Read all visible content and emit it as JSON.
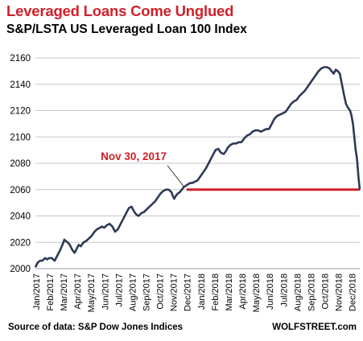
{
  "header": {
    "title": "Leveraged Loans Come Unglued",
    "subtitle": "S&P/LSTA US Leveraged Loan 100 Index"
  },
  "footer": {
    "source": "Source of data: S&P Dow Jones Indices",
    "credit": "WOLFSTREET.com"
  },
  "colors": {
    "series": "#2d3a55",
    "accent": "#d0202a",
    "grid": "#c8c8c8"
  },
  "chart_data": {
    "type": "line",
    "title": "S&P/LSTA US Leveraged Loan 100 Index",
    "xlabel": "",
    "ylabel": "",
    "ylim": [
      2000,
      2160
    ],
    "yticks": [
      2000,
      2020,
      2040,
      2060,
      2080,
      2100,
      2120,
      2140,
      2160
    ],
    "grid": "horizontal",
    "xticks": [
      "Jan/2017",
      "Feb/2017",
      "Mar/2017",
      "Apr/2017",
      "May/2017",
      "Jun/2017",
      "Jul/2017",
      "Aug/2017",
      "Sep/2017",
      "Oct/2017",
      "Nov/2017",
      "Dec/2017",
      "Jan/2018",
      "Feb/2018",
      "Mar/2018",
      "Apr/2018",
      "May/2018",
      "Jun/2018",
      "Jul/2018",
      "Aug/2018",
      "Sep/2018",
      "Oct/2018",
      "Nov/2018",
      "Dec/2018"
    ],
    "series": [
      {
        "x": [
          0.0,
          0.08,
          0.2,
          0.35,
          0.5,
          0.7,
          0.85,
          1.0,
          1.2,
          1.4,
          1.6,
          1.8,
          2.0,
          2.1,
          2.2,
          2.35,
          2.5,
          2.7,
          2.85,
          3.0,
          3.15,
          3.3,
          3.5,
          3.7,
          3.9,
          4.1,
          4.3,
          4.5,
          4.7,
          4.85,
          5.0,
          5.2,
          5.4,
          5.6,
          5.8,
          6.0,
          6.1,
          6.2,
          6.4,
          6.6,
          6.8,
          7.0,
          7.1,
          7.2,
          7.35,
          7.5,
          7.7,
          7.9,
          8.1,
          8.3,
          8.5,
          8.7,
          8.9,
          9.1,
          9.3,
          9.5,
          9.7,
          9.9,
          10.0,
          10.1,
          10.2,
          10.35,
          10.5,
          10.65,
          10.8,
          10.95,
          11.1,
          11.25,
          11.4,
          11.6,
          11.8,
          12.0,
          12.2,
          12.4,
          12.6,
          12.8,
          12.9,
          13.0,
          13.1,
          13.3,
          13.5,
          13.7,
          13.85,
          14.0,
          14.2,
          14.4,
          14.6,
          14.8,
          15.0,
          15.2,
          15.4,
          15.6,
          15.8,
          16.0,
          16.2,
          16.4,
          16.6,
          16.8,
          17.0,
          17.2,
          17.4,
          17.6,
          17.8,
          18.0,
          18.2,
          18.4,
          18.6,
          18.8,
          19.0,
          19.2,
          19.4,
          19.6,
          19.8,
          20.0,
          20.2,
          20.4,
          20.6,
          20.8,
          21.0,
          21.2,
          21.4,
          21.55,
          21.7,
          21.85,
          22.0,
          22.15,
          22.3,
          22.45,
          22.6,
          22.75,
          22.9,
          23.0,
          23.1,
          23.2,
          23.3,
          23.4,
          23.5,
          23.6
        ],
        "values": [
          2001,
          2003,
          2005,
          2006,
          2006,
          2008,
          2007,
          2008,
          2008,
          2006,
          2010,
          2014,
          2019,
          2022,
          2021,
          2020,
          2018,
          2014,
          2012,
          2015,
          2018,
          2017,
          2020,
          2021,
          2023,
          2025,
          2028,
          2030,
          2031,
          2032,
          2031,
          2033,
          2034,
          2032,
          2028,
          2030,
          2032,
          2034,
          2038,
          2042,
          2046,
          2047,
          2045,
          2043,
          2041,
          2040,
          2042,
          2043,
          2045,
          2047,
          2049,
          2051,
          2054,
          2057,
          2059,
          2060,
          2060,
          2058,
          2055,
          2053,
          2055,
          2057,
          2058,
          2060,
          2062,
          2063,
          2064,
          2065,
          2065,
          2066,
          2067,
          2070,
          2073,
          2076,
          2080,
          2084,
          2086,
          2088,
          2090,
          2091,
          2088,
          2087,
          2089,
          2092,
          2094,
          2095,
          2095,
          2096,
          2096,
          2099,
          2101,
          2102,
          2104,
          2105,
          2105,
          2104,
          2105,
          2106,
          2106,
          2110,
          2114,
          2116,
          2117,
          2118,
          2119,
          2122,
          2125,
          2127,
          2128,
          2131,
          2133,
          2135,
          2138,
          2141,
          2144,
          2147,
          2150,
          2152,
          2153,
          2153,
          2152,
          2150,
          2148,
          2151,
          2150,
          2148,
          2140,
          2132,
          2125,
          2122,
          2120,
          2116,
          2110,
          2100,
          2090,
          2083,
          2070,
          2060
        ]
      }
    ],
    "reference_line": {
      "value": 2060,
      "from_x": 11.0,
      "to_x": 23.6
    },
    "annotations": [
      {
        "text": "Nov 30, 2017",
        "points_to_x": 10.95,
        "points_to_y": 2060
      }
    ]
  }
}
